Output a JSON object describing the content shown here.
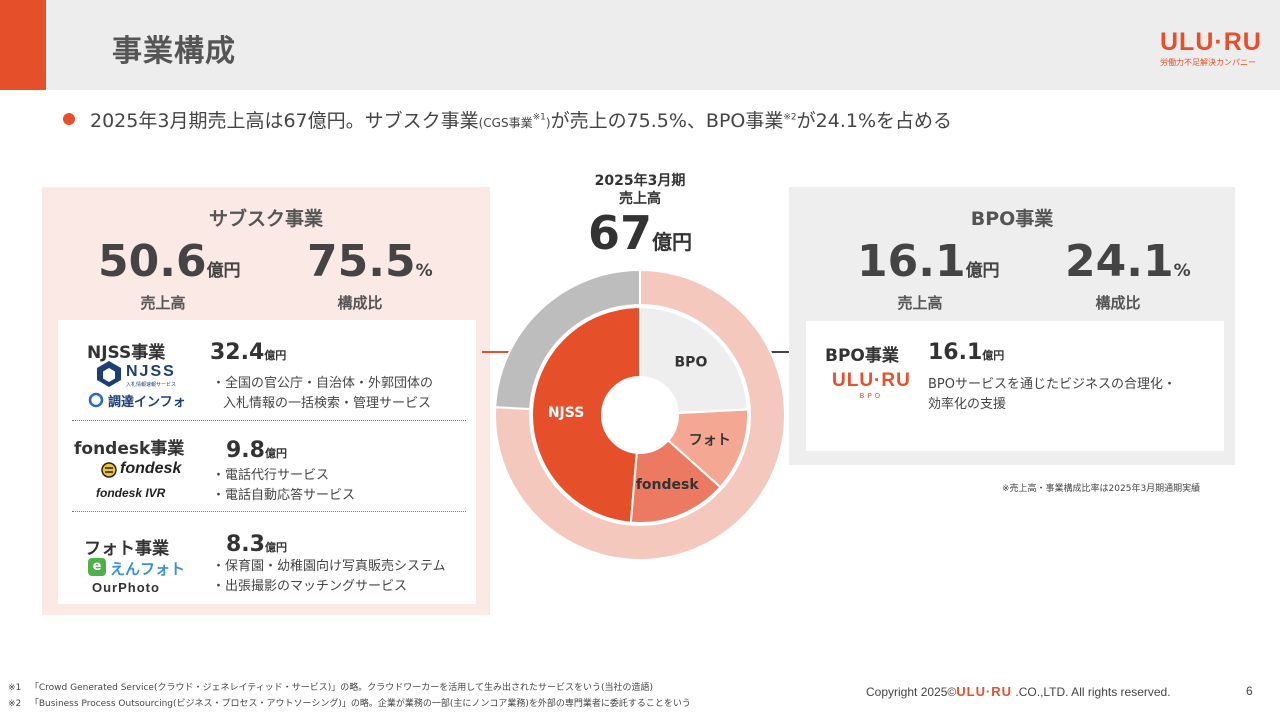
{
  "header": {
    "title": "事業構成"
  },
  "logo": {
    "main": "ULU·RU",
    "tagline": "労働力不足解決カンパニー"
  },
  "summary": {
    "part1": "2025年3月期売上高は67億円。サブスク事業",
    "part2": "(CGS事業",
    "sup1": "※1",
    "part3": ")",
    "part4": "が売上の75.5%、BPO事業",
    "sup2": "※2",
    "part5": "が24.1%を占める"
  },
  "center": {
    "period": "2025年3月期",
    "label": "売上高",
    "value": "67",
    "unit": "億円"
  },
  "subscription": {
    "title": "サブスク事業",
    "sales_value": "50.6",
    "sales_unit": "億円",
    "sales_caption": "売上高",
    "ratio_value": "75.5",
    "ratio_unit": "%",
    "ratio_caption": "構成比",
    "businesses": [
      {
        "name": "NJSS事業",
        "value": "32.4",
        "unit": "億円",
        "logo1": "NJSS",
        "logo1_sub": "入札情報速報サービス",
        "logo2": "調達インフォ",
        "desc": [
          "・全国の官公庁・自治体・外郭団体の",
          "入札情報の一括検索・管理サービス"
        ]
      },
      {
        "name": "fondesk事業",
        "value": "9.8",
        "unit": "億円",
        "logo1": "fondesk",
        "logo2": "fondesk IVR",
        "desc": [
          "・電話代行サービス",
          "・電話自動応答サービス"
        ]
      },
      {
        "name": "フォト事業",
        "value": "8.3",
        "unit": "億円",
        "logo1": "えんフォト",
        "logo2": "OurPhoto",
        "desc": [
          "・保育園・幼稚園向け写真販売システム",
          "・出張撮影のマッチングサービス"
        ]
      }
    ]
  },
  "bpo": {
    "title": "BPO事業",
    "sales_value": "16.1",
    "sales_unit": "億円",
    "sales_caption": "売上高",
    "ratio_value": "24.1",
    "ratio_unit": "%",
    "ratio_caption": "構成比",
    "business": {
      "name": "BPO事業",
      "value": "16.1",
      "unit": "億円",
      "logo": "ULU·RU",
      "logo_sub": "BPO",
      "desc": [
        "BPOサービスを通じたビジネスの合理化・",
        "効率化の支援"
      ]
    }
  },
  "note": "※売上高・事業構成比率は2025年3月期通期実績",
  "footnotes": [
    {
      "mark": "※1",
      "text": "「Crowd Generated Service(クラウド・ジェネレイティッド・サービス)」の略。クラウドワーカーを活用して生み出されたサービスをいう(当社の造語)"
    },
    {
      "mark": "※2",
      "text": "「Business Process Outsourcing(ビジネス・プロセス・アウトソーシング)」の略。企業が業務の一部(主にノンコア業務)を外部の専門業者に委託することをいう"
    }
  ],
  "footer": {
    "copyright_prefix": "Copyright 2025©",
    "copyright_logo": "ULU·RU",
    "copyright_suffix": " .CO.,LTD. All rights reserved.",
    "page": "6"
  },
  "colors": {
    "accent": "#e5502a",
    "outer_sub": "#f5c8bd",
    "outer_bpo": "#bdbdbd",
    "njss": "#e5502a",
    "fondesk": "#ec7a62",
    "photo": "#f4a792",
    "bpo_inner": "#eeeeee"
  },
  "chart_data": {
    "type": "pie",
    "title": "2025年3月期 売上高 67億円",
    "unit": "億円",
    "rings": [
      {
        "name": "outer",
        "labels": [
          "サブスク事業",
          "BPO事業"
        ],
        "values": [
          50.6,
          16.1
        ],
        "percent": [
          75.5,
          24.1
        ]
      },
      {
        "name": "inner",
        "labels": [
          "NJSS",
          "fondesk",
          "フォト",
          "BPO"
        ],
        "values": [
          32.4,
          9.8,
          8.3,
          16.1
        ]
      }
    ]
  }
}
